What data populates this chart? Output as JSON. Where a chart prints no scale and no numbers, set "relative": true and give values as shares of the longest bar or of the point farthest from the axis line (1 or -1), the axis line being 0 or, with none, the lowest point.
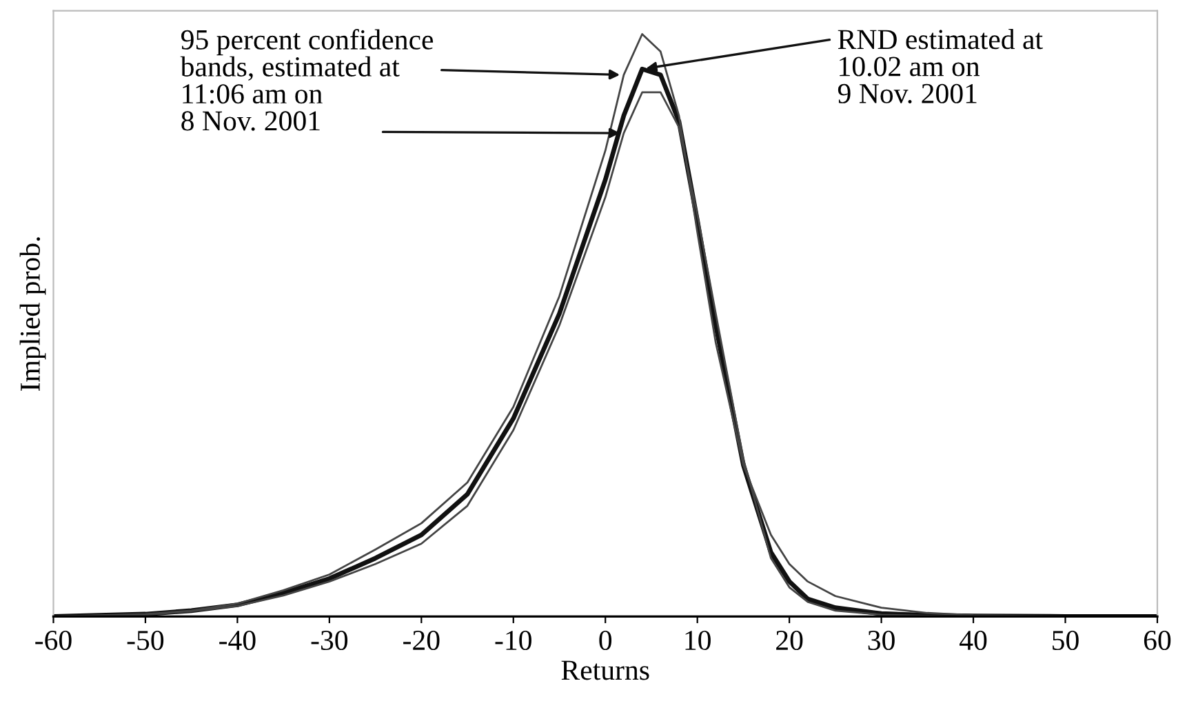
{
  "chart_data": {
    "type": "line",
    "relative": true,
    "xlabel": "Returns",
    "ylabel": "Implied prob.",
    "xlim": [
      -60,
      60
    ],
    "xticks": [
      -60,
      -50,
      -40,
      -30,
      -20,
      -10,
      0,
      10,
      20,
      30,
      40,
      50,
      60
    ],
    "grid": false,
    "legend": false,
    "marker": "none",
    "line_style": "solid",
    "x": [
      -60,
      -50,
      -45,
      -40,
      -35,
      -30,
      -25,
      -20,
      -15,
      -10,
      -5,
      0,
      2,
      4,
      6,
      8,
      10,
      12,
      15,
      18,
      20,
      22,
      25,
      30,
      35,
      40,
      50,
      60
    ],
    "series": [
      {
        "color": "#111111",
        "values": [
          0,
          0.004,
          0.01,
          0.02,
          0.04,
          0.065,
          0.1,
          0.14,
          0.21,
          0.34,
          0.52,
          0.75,
          0.86,
          0.94,
          0.93,
          0.85,
          0.68,
          0.5,
          0.26,
          0.11,
          0.06,
          0.03,
          0.015,
          0.005,
          0.002,
          0.001,
          0,
          0
        ]
      },
      {
        "color": "#444444",
        "values": [
          0,
          0.004,
          0.01,
          0.022,
          0.045,
          0.072,
          0.115,
          0.16,
          0.23,
          0.36,
          0.55,
          0.8,
          0.93,
          1.0,
          0.97,
          0.86,
          0.66,
          0.47,
          0.26,
          0.14,
          0.09,
          0.06,
          0.035,
          0.015,
          0.006,
          0.002,
          0,
          0
        ]
      },
      {
        "color": "#444444",
        "values": [
          0,
          0.003,
          0.009,
          0.018,
          0.036,
          0.06,
          0.09,
          0.125,
          0.19,
          0.32,
          0.5,
          0.72,
          0.83,
          0.9,
          0.9,
          0.84,
          0.69,
          0.52,
          0.27,
          0.1,
          0.05,
          0.025,
          0.01,
          0.003,
          0.001,
          0,
          0,
          0
        ]
      }
    ],
    "annotations": [
      {
        "text": "95 percent confidence\nbands, estimated at\n11:06 am on\n8 Nov. 2001",
        "x": 2,
        "y": 0.93
      },
      {
        "text": "RND estimated at\n10.02 am on\n9 Nov. 2001",
        "x": 4,
        "y": 0.94
      }
    ]
  }
}
